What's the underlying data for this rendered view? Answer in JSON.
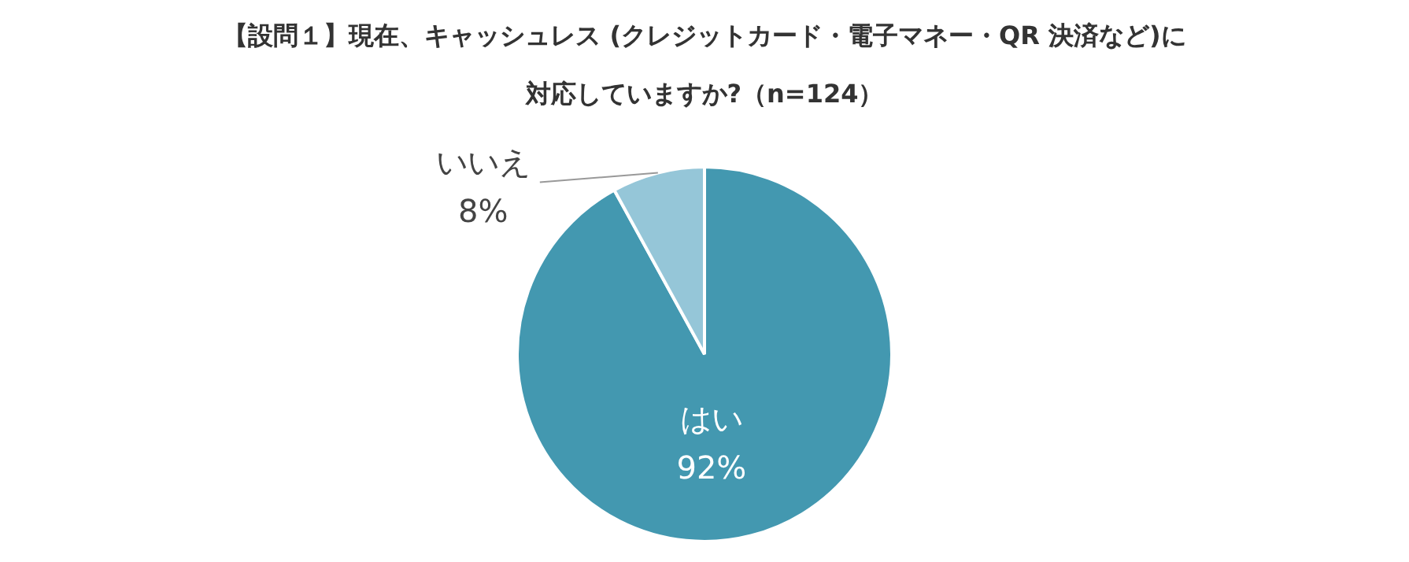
{
  "chart_data": {
    "type": "pie",
    "title": "【設問１】現在、キャッシュレス (クレジットカード・電子マネー・QR 決済など)に対応していますか?（n=124）",
    "categories": [
      "はい",
      "いいえ"
    ],
    "values": [
      92,
      8
    ],
    "value_labels": [
      "92%",
      "8%"
    ],
    "colors": [
      "#4398b0",
      "#95c6d8"
    ],
    "legend": false
  }
}
